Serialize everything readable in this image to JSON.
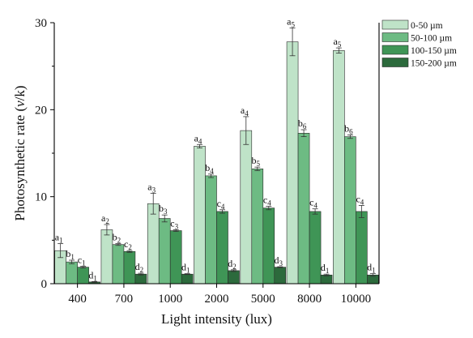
{
  "chart_data": {
    "type": "bar",
    "title": "",
    "xlabel": "Light intensity (lux)",
    "ylabel_parts": [
      "Photosynthetic rate (",
      "v",
      "/k)"
    ],
    "ylim": [
      0,
      30
    ],
    "yticks": [
      0,
      10,
      20,
      30
    ],
    "categories": [
      "400",
      "700",
      "1000",
      "2000",
      "5000",
      "8000",
      "10000"
    ],
    "legend_position": "top-right",
    "series": [
      {
        "name": "0-50 µm",
        "color": "#bfe3c8",
        "values": [
          3.8,
          6.2,
          9.2,
          15.8,
          17.6,
          27.8,
          26.8
        ],
        "errors": [
          0.8,
          0.6,
          1.2,
          0.2,
          1.6,
          1.6,
          0.3
        ],
        "labels": [
          [
            "a",
            "1"
          ],
          [
            "a",
            "2"
          ],
          [
            "a",
            "3"
          ],
          [
            "a",
            "4"
          ],
          [
            "a",
            "4"
          ],
          [
            "a",
            "5"
          ],
          [
            "a",
            "5"
          ]
        ]
      },
      {
        "name": "50-100 µm",
        "color": "#6dbb83",
        "values": [
          2.5,
          4.5,
          7.5,
          12.4,
          13.2,
          17.3,
          16.9
        ],
        "errors": [
          0.2,
          0.1,
          0.4,
          0.2,
          0.2,
          0.4,
          0.2
        ],
        "labels": [
          [
            "b",
            "1"
          ],
          [
            "b",
            "2"
          ],
          [
            "b",
            "3"
          ],
          [
            "b",
            "4"
          ],
          [
            "b",
            "5"
          ],
          [
            "b",
            "6"
          ],
          [
            "b",
            "6"
          ]
        ]
      },
      {
        "name": "100-150 µm",
        "color": "#3f9556",
        "values": [
          1.9,
          3.7,
          6.1,
          8.3,
          8.7,
          8.3,
          8.3
        ],
        "errors": [
          0.1,
          0.1,
          0.1,
          0.2,
          0.2,
          0.3,
          0.7
        ],
        "labels": [
          [
            "c",
            "1"
          ],
          [
            "c",
            "2"
          ],
          [
            "c",
            "3"
          ],
          [
            "c",
            "4"
          ],
          [
            "c",
            "4"
          ],
          [
            "c",
            "4"
          ],
          [
            "c",
            "4"
          ]
        ]
      },
      {
        "name": "150-200 µm",
        "color": "#2c6a3c",
        "values": [
          0.2,
          1.1,
          1.1,
          1.5,
          1.9,
          1.0,
          1.0
        ],
        "errors": [
          0.05,
          0.1,
          0.05,
          0.1,
          0.05,
          0.1,
          0.15
        ],
        "labels": [
          [
            "d",
            "1"
          ],
          [
            "d",
            "2"
          ],
          [
            "d",
            "1"
          ],
          [
            "d",
            "2"
          ],
          [
            "d",
            "3"
          ],
          [
            "d",
            "1"
          ],
          [
            "d",
            "1"
          ]
        ]
      }
    ]
  }
}
